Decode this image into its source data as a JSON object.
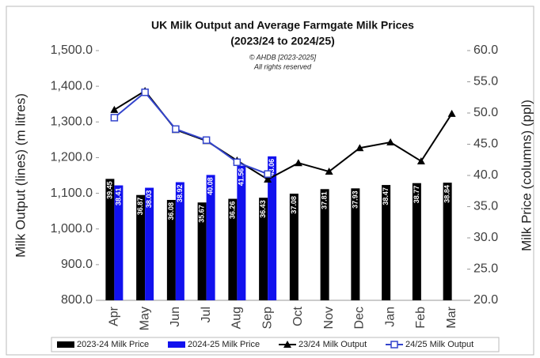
{
  "chart_data": {
    "type": "bar-line",
    "title": "UK Milk Output and Average Farmgate Milk Prices",
    "subtitle": "(2023/24 to 2024/25)",
    "annotations": [
      "© AHDB [2023-2025]",
      "All rights reserved"
    ],
    "ylabel": "Milk Output (lines) (m litres)",
    "y2label": "Milk Price (columns) (ppl)",
    "categories": [
      "Apr",
      "May",
      "Jun",
      "Jul",
      "Aug",
      "Sep",
      "Oct",
      "Nov",
      "Dec",
      "Jan",
      "Feb",
      "Mar"
    ],
    "ylim": [
      800,
      1500
    ],
    "yticks": [
      {
        "value": 800,
        "label": "800.0"
      },
      {
        "value": 900,
        "label": "900.0"
      },
      {
        "value": 1000,
        "label": "1,000.0"
      },
      {
        "value": 1100,
        "label": "1,100.0"
      },
      {
        "value": 1200,
        "label": "1,200.0"
      },
      {
        "value": 1300,
        "label": "1,300.0"
      },
      {
        "value": 1400,
        "label": "1,400.0"
      },
      {
        "value": 1500,
        "label": "1,500.0"
      }
    ],
    "y2lim": [
      20,
      60
    ],
    "y2ticks": [
      {
        "value": 20,
        "label": "20.0"
      },
      {
        "value": 25,
        "label": "25.0"
      },
      {
        "value": 30,
        "label": "30.0"
      },
      {
        "value": 35,
        "label": "35.0"
      },
      {
        "value": 40,
        "label": "40.0"
      },
      {
        "value": 45,
        "label": "45.0"
      },
      {
        "value": 50,
        "label": "50.0"
      },
      {
        "value": 55,
        "label": "55.0"
      },
      {
        "value": 60,
        "label": "60.0"
      }
    ],
    "grid": false,
    "legend": "bottom",
    "series": [
      {
        "name": "2023-24 Milk Price",
        "type": "bar",
        "axis": "y2",
        "color": "#000000",
        "values": [
          39.45,
          36.87,
          36.08,
          35.67,
          36.26,
          36.43,
          37.08,
          37.81,
          37.93,
          38.47,
          38.77,
          38.84
        ]
      },
      {
        "name": "2024-25 Milk Price",
        "type": "bar",
        "axis": "y2",
        "color": "#1111ee",
        "values": [
          38.41,
          38.03,
          38.92,
          40.08,
          41.56,
          43.06,
          null,
          null,
          null,
          null,
          null,
          null
        ]
      },
      {
        "name": "23/24 Milk Output",
        "type": "line",
        "marker": "triangle",
        "color": "#000000",
        "values": [
          1334,
          1387,
          1278,
          1247,
          1192,
          1139,
          1185,
          1161,
          1227,
          1243,
          1190,
          1323
        ]
      },
      {
        "name": "24/25 Milk Output",
        "type": "line",
        "marker": "square",
        "color": "#3344cc",
        "values": [
          1312,
          1383,
          1280,
          1249,
          1187,
          1154,
          null,
          null,
          null,
          null,
          null,
          null
        ]
      }
    ]
  }
}
